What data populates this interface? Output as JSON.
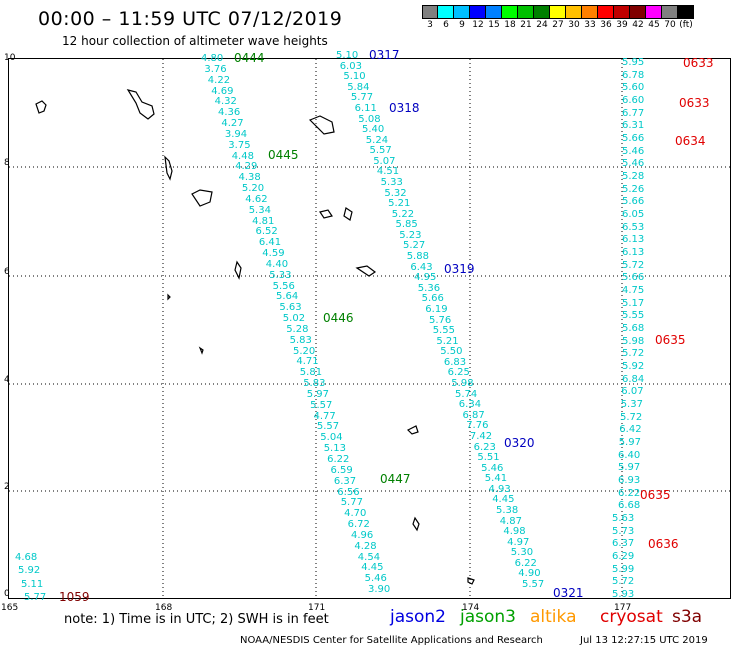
{
  "title": "00:00 – 11:59 UTC 07/12/2019",
  "subtitle": "12 hour collection of altimeter wave heights",
  "colorbar": {
    "colors": [
      "#808080",
      "#00ffff",
      "#00c0ff",
      "#0000ff",
      "#0080ff",
      "#00ff00",
      "#00c000",
      "#008000",
      "#ffff00",
      "#ffc000",
      "#ff8000",
      "#ff0000",
      "#c00000",
      "#800000",
      "#ff00ff",
      "#808080",
      "#000000"
    ],
    "labels": [
      "3",
      "6",
      "9",
      "12",
      "15",
      "18",
      "21",
      "24",
      "27",
      "30",
      "33",
      "36",
      "39",
      "42",
      "45",
      "70",
      "(ft)"
    ]
  },
  "axes": {
    "y_ticks": [
      "10",
      "8",
      "6",
      "4",
      "2",
      "0"
    ],
    "x_ticks": [
      "165",
      "168",
      "171",
      "174",
      "177"
    ]
  },
  "tracks": [
    {
      "values": [
        "4.80",
        "3.76",
        "4.22",
        "4.69",
        "4.32",
        "4.36",
        "4.27",
        "3.94",
        "3.75",
        "4.48",
        "4.29",
        "4.38",
        "5.20",
        "4.62",
        "5.34",
        "4.81",
        "6.52",
        "6.41",
        "4.59",
        "4.40",
        "5.33",
        "5.56",
        "5.64",
        "5.63",
        "5.02",
        "5.28",
        "5.83",
        "5.20",
        "4.71",
        "5.81",
        "5.83",
        "5.97",
        "5.57",
        "4.77",
        "5.57",
        "5.04",
        "5.13",
        "6.22",
        "6.59",
        "6.37",
        "6.56",
        "5.77",
        "4.70",
        "6.72",
        "4.96",
        "4.28",
        "4.54",
        "4.45",
        "5.46",
        "3.90"
      ]
    },
    {
      "values": [
        "5.10",
        "6.03",
        "5.10",
        "5.84",
        "5.77",
        "6.11",
        "5.08",
        "5.40",
        "5.24",
        "5.57",
        "5.07",
        "4.51",
        "5.33",
        "5.32",
        "5.21",
        "5.22",
        "5.85",
        "5.23",
        "5.27",
        "5.88",
        "6.43",
        "4.95",
        "5.36",
        "5.66",
        "6.19",
        "5.76",
        "5.55",
        "5.21",
        "5.50",
        "6.83",
        "6.25",
        "5.98",
        "5.74",
        "6.34",
        "6.87",
        "7.76",
        "7.42",
        "6.23",
        "5.51",
        "5.46",
        "5.41",
        "4.93",
        "4.45",
        "5.38",
        "4.87",
        "4.98",
        "4.97",
        "5.30",
        "6.22",
        "4.90",
        "5.57"
      ]
    },
    {
      "values": [
        "5.95",
        "6.78",
        "5.60",
        "6.60",
        "6.77",
        "6.31",
        "5.66",
        "5.46",
        "5.46",
        "5.28",
        "5.26",
        "5.66",
        "6.05",
        "6.53",
        "6.13",
        "6.13",
        "5.72",
        "5.66",
        "4.75",
        "5.17",
        "5.55",
        "5.68",
        "5.98",
        "5.72",
        "5.92",
        "6.84",
        "6.07",
        "5.37",
        "5.72",
        "6.42",
        "5.97",
        "6.40",
        "5.97",
        "6.93",
        "6.22",
        "6.68",
        "5.63",
        "5.73",
        "6.37",
        "6.29",
        "5.99",
        "5.72",
        "5.93"
      ]
    },
    {
      "values": [
        "4.68",
        "5.92",
        "5.11",
        "5.77"
      ]
    }
  ],
  "time_labels": [
    {
      "text": "0444",
      "color": "#008000"
    },
    {
      "text": "0445",
      "color": "#008000"
    },
    {
      "text": "0446",
      "color": "#008000"
    },
    {
      "text": "0447",
      "color": "#008000"
    },
    {
      "text": "0317",
      "color": "#0000c0"
    },
    {
      "text": "0318",
      "color": "#0000c0"
    },
    {
      "text": "0319",
      "color": "#0000c0"
    },
    {
      "text": "0320",
      "color": "#0000c0"
    },
    {
      "text": "0321",
      "color": "#0000c0"
    },
    {
      "text": "0633",
      "color": "#e00000"
    },
    {
      "text": "0633",
      "color": "#e00000"
    },
    {
      "text": "0634",
      "color": "#e00000"
    },
    {
      "text": "0635",
      "color": "#e00000"
    },
    {
      "text": "0635",
      "color": "#e00000"
    },
    {
      "text": "0636",
      "color": "#e00000"
    },
    {
      "text": "1059",
      "color": "#800000"
    }
  ],
  "note": "note:  1) Time is in UTC;  2) SWH is in feet",
  "legend": [
    {
      "name": "jason2",
      "color": "#0000e0"
    },
    {
      "name": "jason3",
      "color": "#00a000"
    },
    {
      "name": "altika",
      "color": "#ff9900"
    },
    {
      "name": "cryosat",
      "color": "#e00000"
    },
    {
      "name": "s3a",
      "color": "#800000"
    }
  ],
  "credit": "NOAA/NESDIS Center for Satellite Applications and Research",
  "timestamp": "Jul 13 12:27:15 UTC 2019"
}
